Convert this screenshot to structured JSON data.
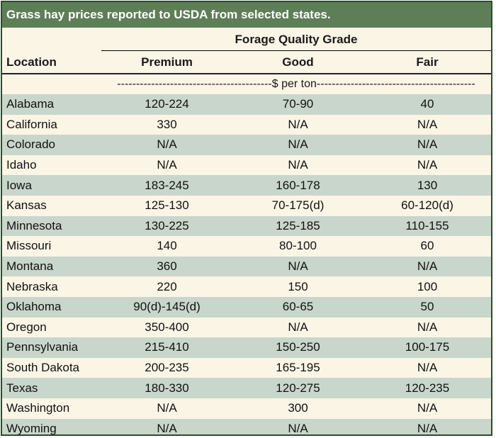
{
  "title": "Grass hay prices reported to USDA from selected states.",
  "header": {
    "group_label": "Forage Quality Grade",
    "location_label": "Location",
    "columns": [
      "Premium",
      "Good",
      "Fair"
    ]
  },
  "unit_label": "-----------------------------------------$ per ton------------------------------------------",
  "colors": {
    "title_bar": "#5e7e57",
    "stripe": "#c9d6cb",
    "background": "#fbf5e6"
  },
  "rows": [
    {
      "location": "Alabama",
      "premium": "120-224",
      "good": "70-90",
      "fair": "40"
    },
    {
      "location": "California",
      "premium": "330",
      "good": "N/A",
      "fair": "N/A"
    },
    {
      "location": "Colorado",
      "premium": "N/A",
      "good": "N/A",
      "fair": "N/A"
    },
    {
      "location": "Idaho",
      "premium": "N/A",
      "good": "N/A",
      "fair": "N/A"
    },
    {
      "location": "Iowa",
      "premium": "183-245",
      "good": "160-178",
      "fair": "130"
    },
    {
      "location": "Kansas",
      "premium": "125-130",
      "good": "70-175(d)",
      "fair": "60-120(d)"
    },
    {
      "location": "Minnesota",
      "premium": "130-225",
      "good": "125-185",
      "fair": "110-155"
    },
    {
      "location": "Missouri",
      "premium": "140",
      "good": "80-100",
      "fair": "60"
    },
    {
      "location": "Montana",
      "premium": "360",
      "good": "N/A",
      "fair": "N/A"
    },
    {
      "location": "Nebraska",
      "premium": "220",
      "good": "150",
      "fair": "100"
    },
    {
      "location": "Oklahoma",
      "premium": "90(d)-145(d)",
      "good": "60-65",
      "fair": "50"
    },
    {
      "location": "Oregon",
      "premium": "350-400",
      "good": "N/A",
      "fair": "N/A"
    },
    {
      "location": "Pennsylvania",
      "premium": "215-410",
      "good": "150-250",
      "fair": "100-175"
    },
    {
      "location": "South Dakota",
      "premium": "200-235",
      "good": "165-195",
      "fair": "N/A"
    },
    {
      "location": "Texas",
      "premium": "180-330",
      "good": "120-275",
      "fair": "120-235"
    },
    {
      "location": "Washington",
      "premium": "N/A",
      "good": "300",
      "fair": "N/A"
    },
    {
      "location": "Wyoming",
      "premium": "N/A",
      "good": "N/A",
      "fair": "N/A"
    }
  ]
}
